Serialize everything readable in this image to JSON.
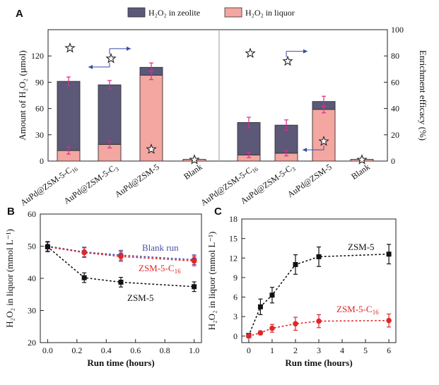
{
  "chart_data": [
    {
      "panel": "A",
      "type": "bar",
      "stacked": true,
      "legend": {
        "position": "top",
        "entries": [
          {
            "label": "H₂O₂ in zeolite",
            "color": "#5b5878"
          },
          {
            "label": "H₂O₂ in liquor",
            "color": "#f4a6a1"
          }
        ]
      },
      "ylabel": "Amount of H₂O₂ (µmol)",
      "y2label": "Enrichment efficacy (%)",
      "ylim": [
        0,
        150
      ],
      "yticks": [
        0,
        30,
        60,
        90,
        120
      ],
      "y2lim": [
        0,
        100
      ],
      "y2ticks": [
        0,
        20,
        40,
        60,
        80,
        100
      ],
      "groups": [
        {
          "categories": [
            "AuPd@ZSM-5-C",
            "AuPd@ZSM-5-C",
            "AuPd@ZSM-5",
            "Blank"
          ],
          "category_subscripts": [
            "16",
            "3",
            "",
            ""
          ],
          "liquor": [
            12,
            19,
            98,
            2
          ],
          "liquor_err": [
            4,
            4,
            5,
            1
          ],
          "total": [
            91,
            87,
            107,
            2
          ],
          "total_err": [
            5,
            5,
            5,
            1
          ],
          "efficacy": [
            86,
            78,
            9,
            1
          ],
          "arrows": [
            {
              "from": 1,
              "to": 0,
              "direction": "left"
            },
            {
              "from": 1,
              "to": 2,
              "direction": "right"
            }
          ]
        },
        {
          "categories": [
            "AuPd@ZSM-5-C",
            "AuPd@ZSM-5-C",
            "AuPd@ZSM-5",
            "Blank"
          ],
          "category_subscripts": [
            "16",
            "3",
            "",
            ""
          ],
          "liquor": [
            7,
            9,
            59,
            2
          ],
          "liquor_err": [
            3,
            3,
            4,
            1
          ],
          "total": [
            44,
            41,
            68,
            2
          ],
          "total_err": [
            6,
            6,
            6,
            1
          ],
          "efficacy": [
            82,
            76,
            15,
            1
          ],
          "arrows": [
            {
              "from": 1,
              "to": 2,
              "direction": "right"
            },
            {
              "from": 2,
              "to": 3,
              "direction": "left"
            }
          ]
        }
      ]
    },
    {
      "panel": "B",
      "type": "scatter",
      "xlabel": "Run time (hours)",
      "ylabel": "H₂O₂ in liquor (mmol L⁻¹)",
      "xlim": [
        -0.05,
        1.05
      ],
      "ylim": [
        20,
        60
      ],
      "xticks": [
        0.0,
        0.2,
        0.4,
        0.6,
        0.8,
        1.0
      ],
      "yticks": [
        20,
        30,
        40,
        50,
        60
      ],
      "series": [
        {
          "name": "Blank run",
          "color": "#4a4fa8",
          "marker": "circle",
          "x": [
            0,
            0.25,
            0.5,
            1.0
          ],
          "y": [
            50,
            48.2,
            47.2,
            45.8
          ],
          "err": [
            1.5,
            1.5,
            1.5,
            1.5
          ]
        },
        {
          "name": "ZSM-5-C",
          "name_sub": "16",
          "color": "#e0262a",
          "marker": "circle",
          "x": [
            0,
            0.25,
            0.5,
            1.0
          ],
          "y": [
            49.8,
            48,
            46.8,
            45.4
          ],
          "err": [
            1.5,
            1.5,
            1.5,
            1.5
          ]
        },
        {
          "name": "ZSM-5",
          "color": "#111111",
          "marker": "square",
          "x": [
            0,
            0.25,
            0.5,
            1.0
          ],
          "y": [
            49.8,
            40.2,
            38.8,
            37.4
          ],
          "err": [
            1.5,
            1.5,
            1.5,
            1.5
          ]
        }
      ]
    },
    {
      "panel": "C",
      "type": "scatter",
      "xlabel": "Run time (hours)",
      "ylabel": "H₂O₂ in liquor (mmol L⁻¹)",
      "xlim": [
        -0.3,
        6.3
      ],
      "ylim": [
        -1,
        18
      ],
      "xticks": [
        0,
        1,
        2,
        3,
        4,
        5,
        6
      ],
      "yticks": [
        0,
        3,
        6,
        9,
        12,
        15,
        18
      ],
      "series": [
        {
          "name": "ZSM-5",
          "color": "#111111",
          "marker": "square",
          "x": [
            0,
            0.5,
            1,
            2,
            3,
            6
          ],
          "y": [
            0.1,
            4.5,
            6.3,
            11,
            12.2,
            12.6
          ],
          "err": [
            0.3,
            1.2,
            1.2,
            1.5,
            1.5,
            1.5
          ]
        },
        {
          "name": "ZSM-5-C",
          "name_sub": "16",
          "color": "#e0262a",
          "marker": "circle",
          "x": [
            0,
            0.5,
            1,
            2,
            3,
            6
          ],
          "y": [
            0,
            0.5,
            1.2,
            1.9,
            2.3,
            2.4
          ],
          "err": [
            0.2,
            0.3,
            0.6,
            1.0,
            1.0,
            1.0
          ]
        }
      ]
    }
  ]
}
